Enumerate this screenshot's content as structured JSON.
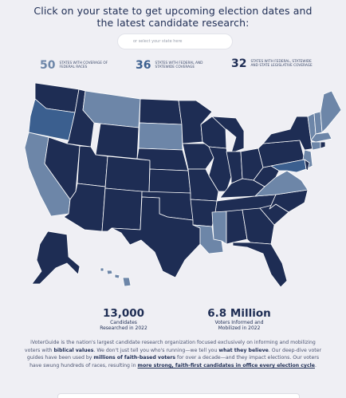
{
  "header": {
    "title_line1": "Click on your state to get upcoming election dates and",
    "title_line2": "the latest candidate research:"
  },
  "search": {
    "placeholder": "or select your state here"
  },
  "coverage": [
    {
      "number": "50",
      "label": "STATES WITH COVERAGE OF FEDERAL RACES",
      "color": "#6d86a8"
    },
    {
      "number": "36",
      "label": "STATES WITH FEDERAL AND STATEWIDE COVERAGE",
      "color": "#3b5f8f"
    },
    {
      "number": "32",
      "label": "STATES WITH FEDERAL, STATEWIDE AND STATE LEGISLATIVE COVERAGE",
      "color": "#1e2d54"
    }
  ],
  "map": {
    "colors": {
      "full": "#1e2d54",
      "statewide": "#3b5f8f",
      "federal": "#6d86a8",
      "border": "#ffffff"
    }
  },
  "stats": {
    "candidates_number": "13,000",
    "candidates_label_line1": "Candidates",
    "candidates_label_line2": "Researched in 2022",
    "voters_number": "6.8 Million",
    "voters_label_line1": "Voters Informed and",
    "voters_label_line2": "Mobilized in 2022"
  },
  "about": {
    "p1": "iVoterGuide is the nation's largest candidate research organization focused exclusively on informing and mobilizing voters with ",
    "p1_bold": "biblical values",
    "p2": ". We don't just tell you who's running—we tell you ",
    "p2_bold": "what they believe",
    "p3": ". Our deep-dive voter guides have been used by ",
    "p3_bold": "millions of faith-based voters",
    "p4": " for over a decade—and they impact elections. Our voters have swung hundreds of races, resulting in ",
    "p4_link": "more strong, faith-first candidates in office every election cycle",
    "p5": "."
  }
}
